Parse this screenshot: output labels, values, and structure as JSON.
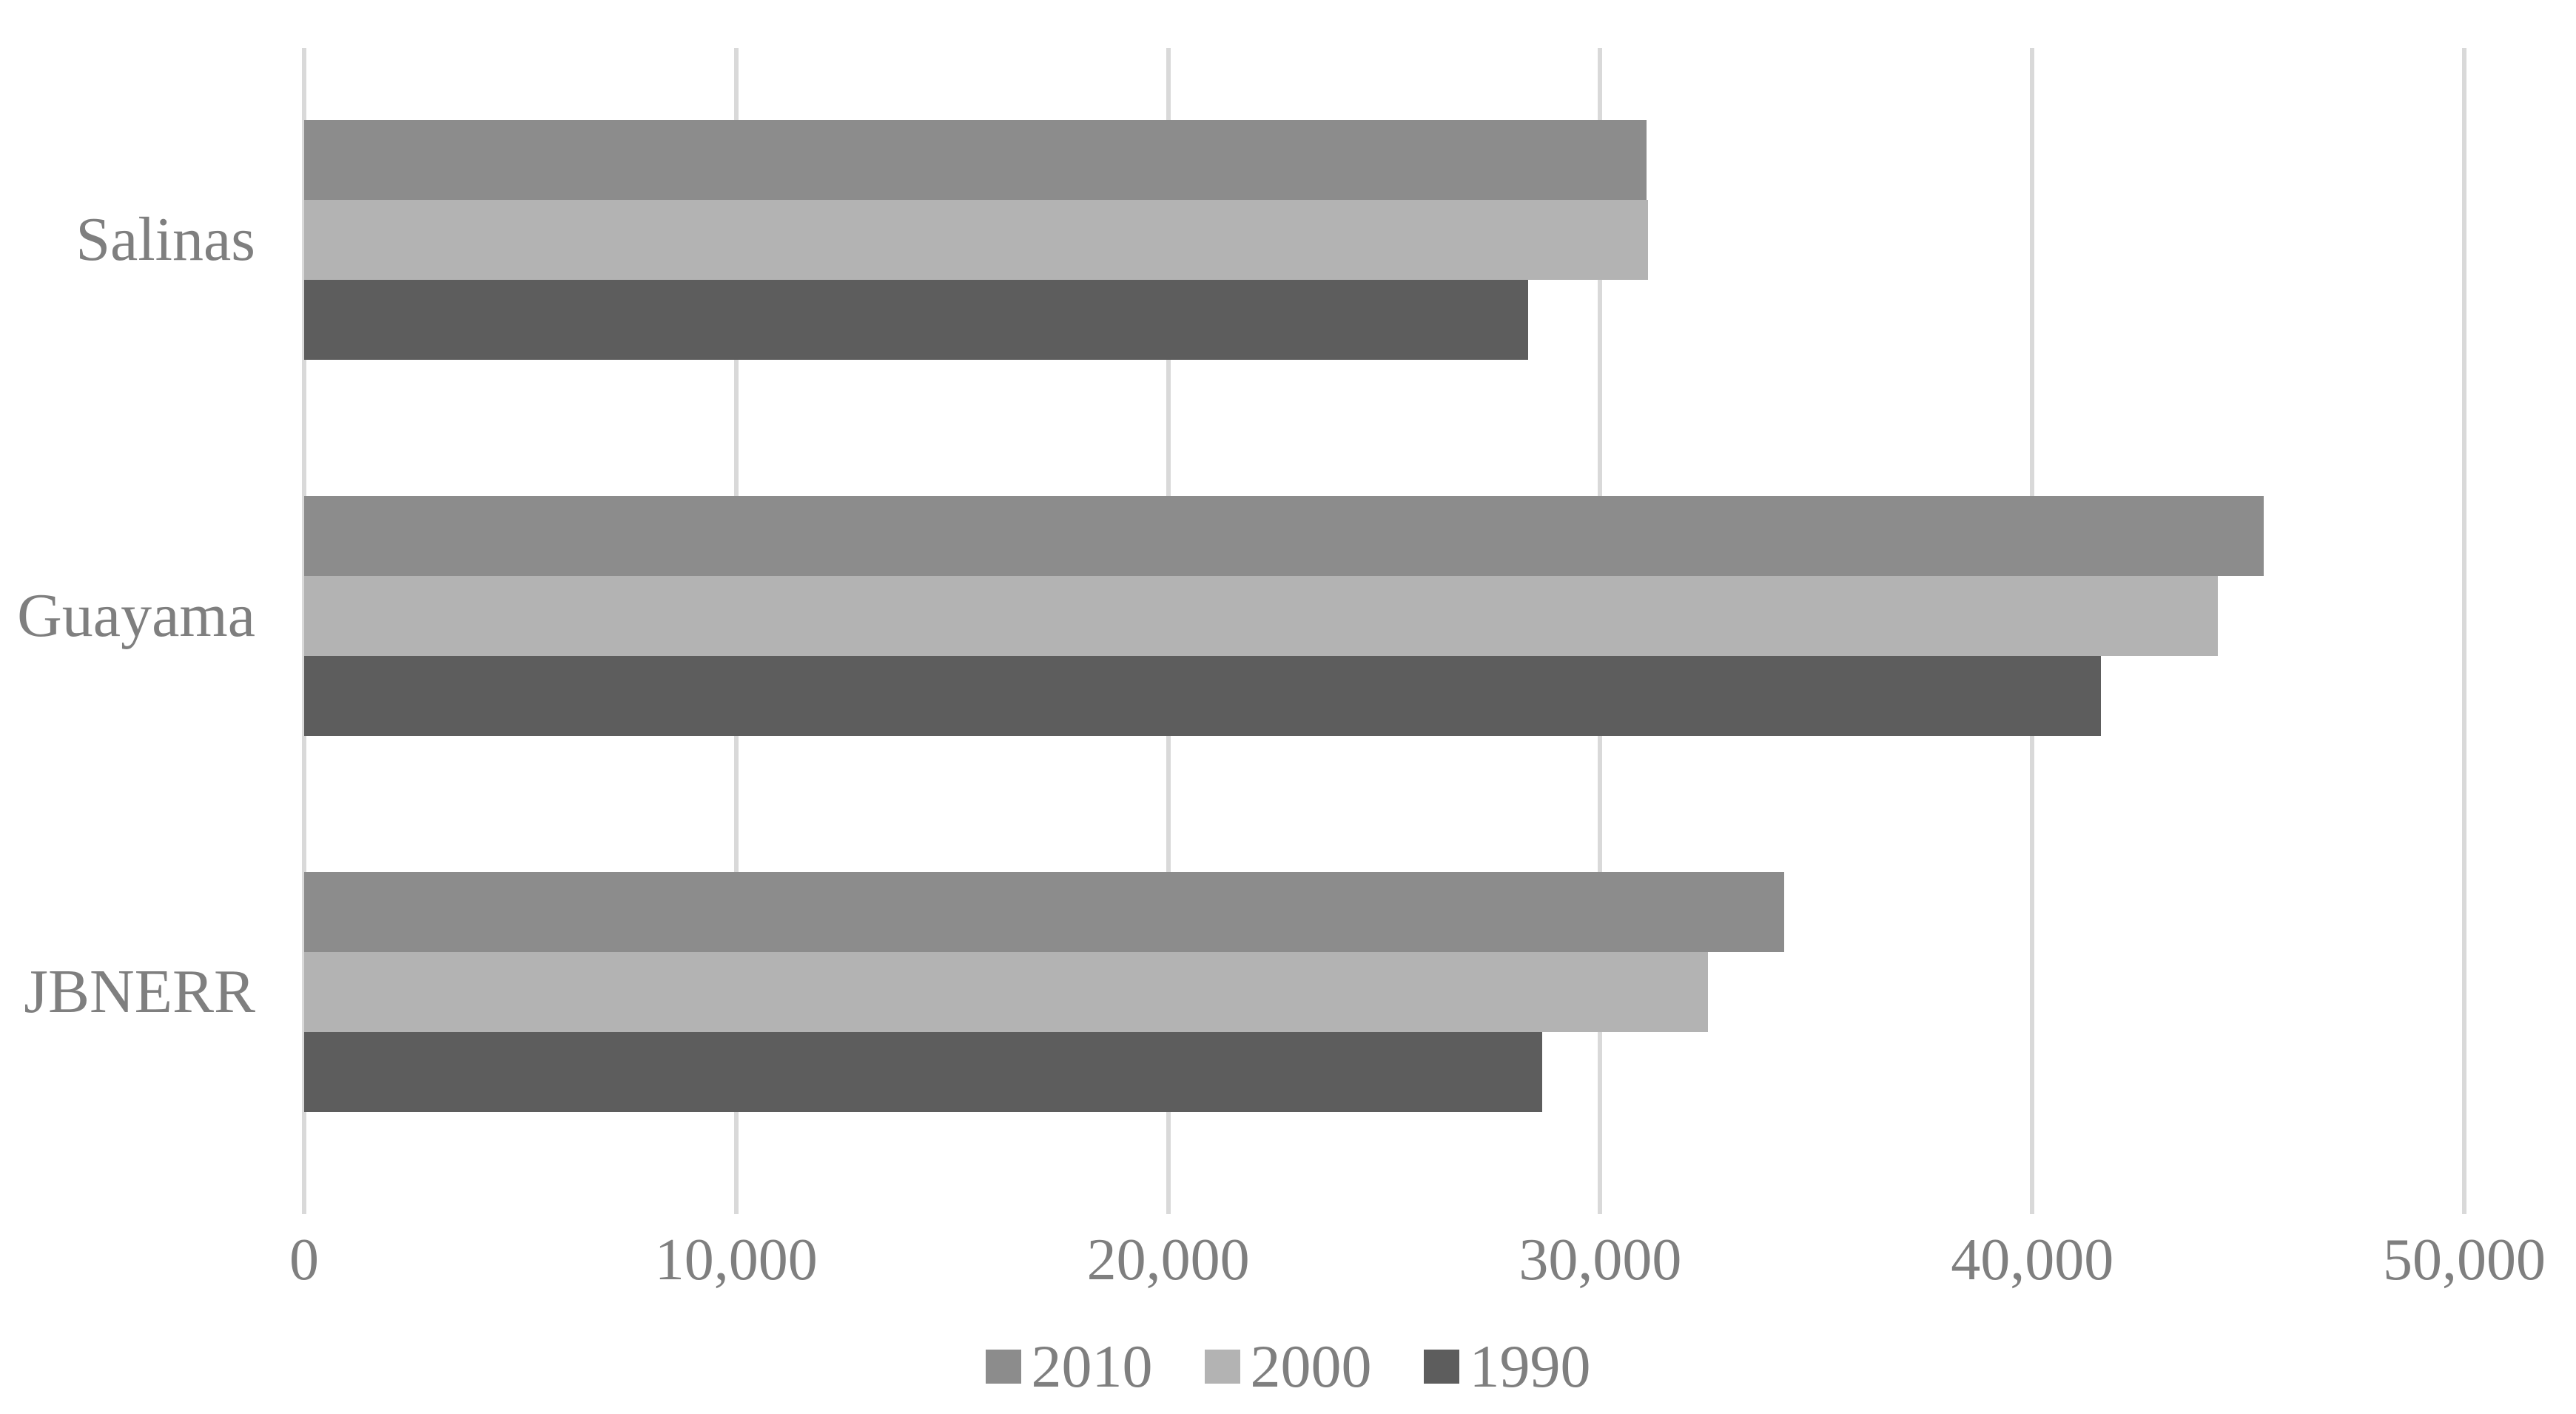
{
  "chart_data": {
    "type": "bar",
    "orientation": "horizontal",
    "title": "",
    "categories": [
      "Salinas",
      "Guayama",
      "JBNERR"
    ],
    "series": [
      {
        "name": "2010",
        "color": "#8c8c8c",
        "values": [
          31078,
          45362,
          34260
        ]
      },
      {
        "name": "2000",
        "color": "#b3b3b3",
        "values": [
          31113,
          44301,
          32500
        ]
      },
      {
        "name": "1990",
        "color": "#5d5d5d",
        "values": [
          28335,
          41588,
          28660
        ]
      }
    ],
    "xlim": [
      0,
      50000
    ],
    "xticks": [
      0,
      10000,
      20000,
      30000,
      40000,
      50000
    ],
    "xtick_labels": [
      "0",
      "10,000",
      "20,000",
      "30,000",
      "40,000",
      "50,000"
    ],
    "grid": "vertical-major",
    "legend_position": "bottom"
  },
  "colors": {
    "background": "#ffffff",
    "gridline": "#d9d9d9",
    "text": "#7f7f7f"
  }
}
